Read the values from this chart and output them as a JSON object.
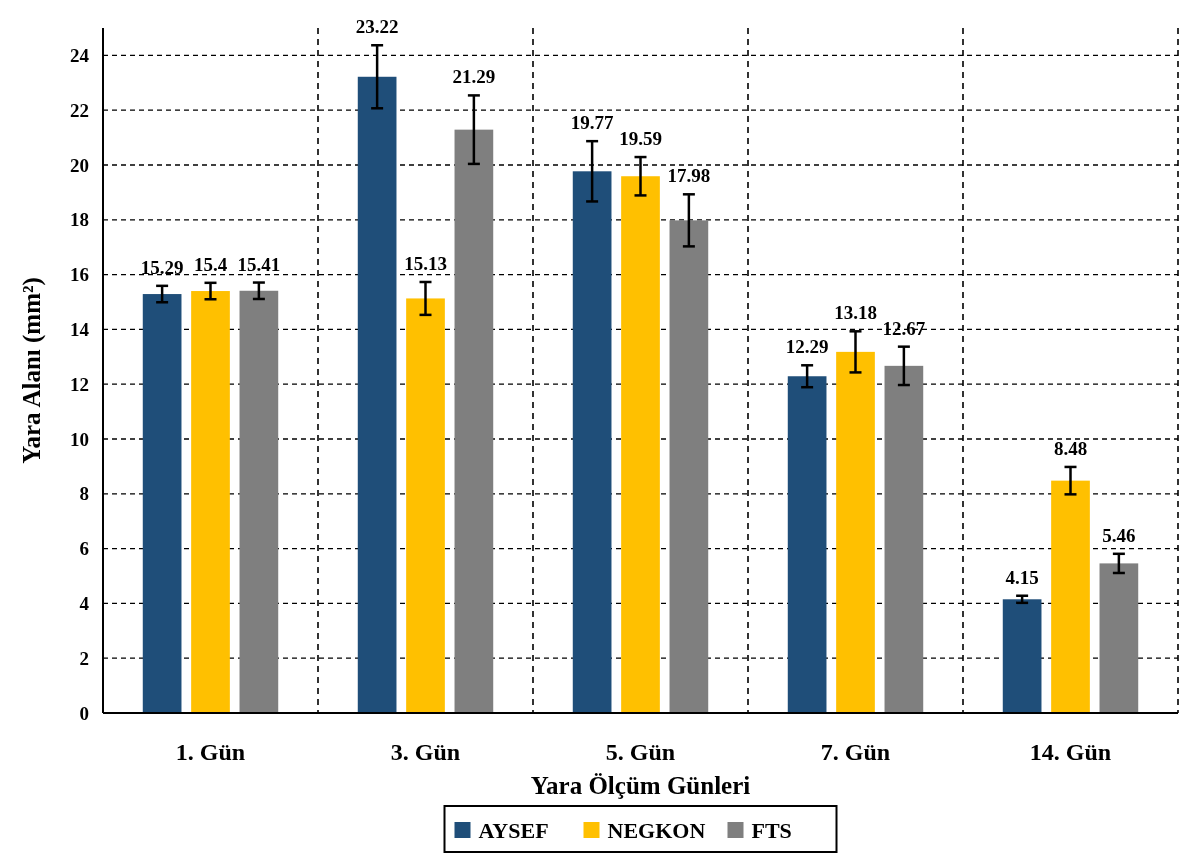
{
  "chart_data": {
    "type": "bar",
    "xlabel": "Yara Ölçüm Günleri",
    "ylabel": "Yara Alanı (mm²)",
    "categories": [
      "1. Gün",
      "3. Gün",
      "5. Gün",
      "7. Gün",
      "14. Gün"
    ],
    "series": [
      {
        "name": "AYSEF",
        "color": "#1f4e79",
        "values": [
          15.29,
          23.22,
          19.77,
          12.29,
          4.15
        ],
        "errors": [
          0.3,
          1.15,
          1.1,
          0.4,
          0.13
        ]
      },
      {
        "name": "NEGKON",
        "color": "#ffc000",
        "values": [
          15.4,
          15.13,
          19.59,
          13.18,
          8.48
        ],
        "errors": [
          0.3,
          0.6,
          0.7,
          0.75,
          0.5
        ]
      },
      {
        "name": "FTS",
        "color": "#7f7f7f",
        "values": [
          15.41,
          21.29,
          17.98,
          12.67,
          5.46
        ],
        "errors": [
          0.3,
          1.25,
          0.95,
          0.7,
          0.35
        ]
      }
    ],
    "ylim": [
      0,
      25
    ],
    "yticks": [
      0,
      2,
      4,
      6,
      8,
      10,
      12,
      14,
      16,
      18,
      20,
      22,
      24
    ],
    "grid": true,
    "legend": "bottom",
    "data_labels": true
  }
}
